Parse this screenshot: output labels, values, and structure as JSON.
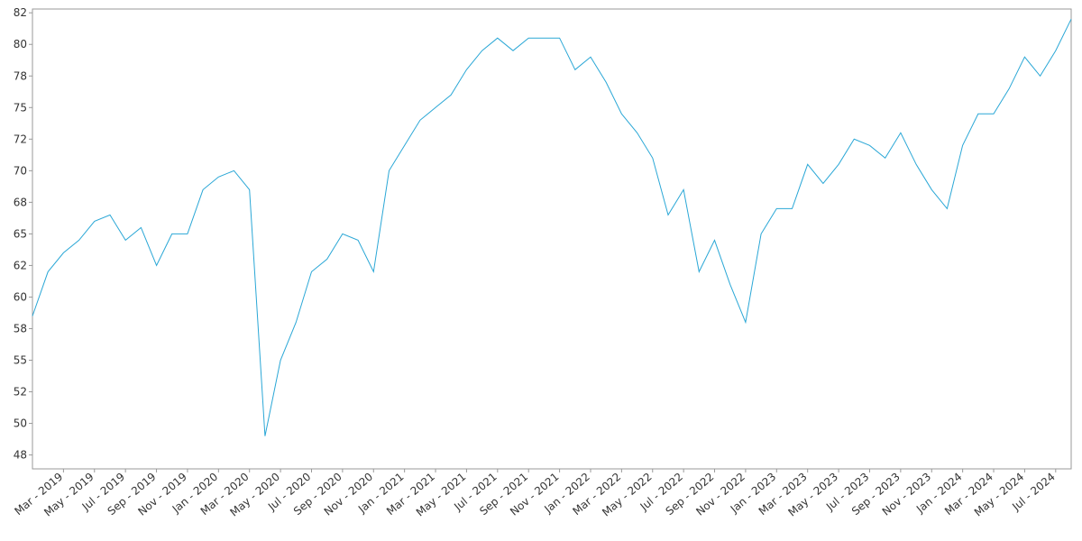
{
  "chart_data": {
    "type": "line",
    "xlim": [
      "2019-01",
      "2024-08"
    ],
    "ylim": [
      46.4,
      82.8
    ],
    "yticks": [
      {
        "value": 47.5,
        "label": "48"
      },
      50,
      {
        "value": 52.5,
        "label": "52"
      },
      55,
      {
        "value": 57.5,
        "label": "58"
      },
      60,
      {
        "value": 62.5,
        "label": "62"
      },
      65,
      {
        "value": 67.5,
        "label": "68"
      },
      70,
      {
        "value": 72.5,
        "label": "72"
      },
      75,
      {
        "value": 77.5,
        "label": "78"
      },
      80,
      {
        "value": 82.5,
        "label": "82"
      }
    ],
    "xticks": [
      {
        "value": "2019-03",
        "label": "Mar - 2019"
      },
      {
        "value": "2019-05",
        "label": "May - 2019"
      },
      {
        "value": "2019-07",
        "label": "Jul - 2019"
      },
      {
        "value": "2019-09",
        "label": "Sep - 2019"
      },
      {
        "value": "2019-11",
        "label": "Nov - 2019"
      },
      {
        "value": "2020-01",
        "label": "Jan - 2020"
      },
      {
        "value": "2020-03",
        "label": "Mar - 2020"
      },
      {
        "value": "2020-05",
        "label": "May - 2020"
      },
      {
        "value": "2020-07",
        "label": "Jul - 2020"
      },
      {
        "value": "2020-09",
        "label": "Sep - 2020"
      },
      {
        "value": "2020-11",
        "label": "Nov - 2020"
      },
      {
        "value": "2021-01",
        "label": "Jan - 2021"
      },
      {
        "value": "2021-03",
        "label": "Mar - 2021"
      },
      {
        "value": "2021-05",
        "label": "May - 2021"
      },
      {
        "value": "2021-07",
        "label": "Jul - 2021"
      },
      {
        "value": "2021-09",
        "label": "Sep - 2021"
      },
      {
        "value": "2021-11",
        "label": "Nov - 2021"
      },
      {
        "value": "2022-01",
        "label": "Jan - 2022"
      },
      {
        "value": "2022-03",
        "label": "Mar - 2022"
      },
      {
        "value": "2022-05",
        "label": "May - 2022"
      },
      {
        "value": "2022-07",
        "label": "Jul - 2022"
      },
      {
        "value": "2022-09",
        "label": "Sep - 2022"
      },
      {
        "value": "2022-11",
        "label": "Nov - 2022"
      },
      {
        "value": "2023-01",
        "label": "Jan - 2023"
      },
      {
        "value": "2023-03",
        "label": "Mar - 2023"
      },
      {
        "value": "2023-05",
        "label": "May - 2023"
      },
      {
        "value": "2023-07",
        "label": "Jul - 2023"
      },
      {
        "value": "2023-09",
        "label": "Sep - 2023"
      },
      {
        "value": "2023-11",
        "label": "Nov - 2023"
      },
      {
        "value": "2024-01",
        "label": "Jan - 2024"
      },
      {
        "value": "2024-03",
        "label": "Mar - 2024"
      },
      {
        "value": "2024-05",
        "label": "May - 2024"
      },
      {
        "value": "2024-07",
        "label": "Jul - 2024"
      }
    ],
    "x": [
      "2019-01",
      "2019-02",
      "2019-03",
      "2019-04",
      "2019-05",
      "2019-06",
      "2019-07",
      "2019-08",
      "2019-09",
      "2019-10",
      "2019-11",
      "2019-12",
      "2020-01",
      "2020-02",
      "2020-03",
      "2020-04",
      "2020-05",
      "2020-06",
      "2020-07",
      "2020-08",
      "2020-09",
      "2020-10",
      "2020-11",
      "2020-12",
      "2021-01",
      "2021-02",
      "2021-03",
      "2021-04",
      "2021-05",
      "2021-06",
      "2021-07",
      "2021-08",
      "2021-09",
      "2021-10",
      "2021-11",
      "2021-12",
      "2022-01",
      "2022-02",
      "2022-03",
      "2022-04",
      "2022-05",
      "2022-06",
      "2022-07",
      "2022-08",
      "2022-09",
      "2022-10",
      "2022-11",
      "2022-12",
      "2023-01",
      "2023-02",
      "2023-03",
      "2023-04",
      "2023-05",
      "2023-06",
      "2023-07",
      "2023-08",
      "2023-09",
      "2023-10",
      "2023-11",
      "2023-12",
      "2024-01",
      "2024-02",
      "2024-03",
      "2024-04",
      "2024-05",
      "2024-06",
      "2024-07",
      "2024-08"
    ],
    "series": [
      {
        "color": "#2aa7d6",
        "values": [
          58.5,
          62,
          63.5,
          64.5,
          66,
          66.5,
          64.5,
          65.5,
          62.5,
          65,
          65,
          68.5,
          69.5,
          70,
          68.5,
          49,
          55,
          58,
          62,
          63,
          65,
          64.5,
          62,
          70,
          72,
          74,
          75,
          76,
          78,
          79.5,
          80.5,
          79.5,
          80.5,
          80.5,
          80.5,
          78,
          79,
          77,
          74.5,
          73,
          71,
          66.5,
          68.5,
          62,
          64.5,
          61,
          58,
          65,
          67,
          67,
          70.5,
          69,
          70.5,
          72.5,
          72,
          71,
          73,
          70.5,
          68.5,
          67,
          72,
          74.5,
          74.5,
          76.5,
          79,
          77.5,
          79.5,
          82
        ]
      }
    ]
  }
}
